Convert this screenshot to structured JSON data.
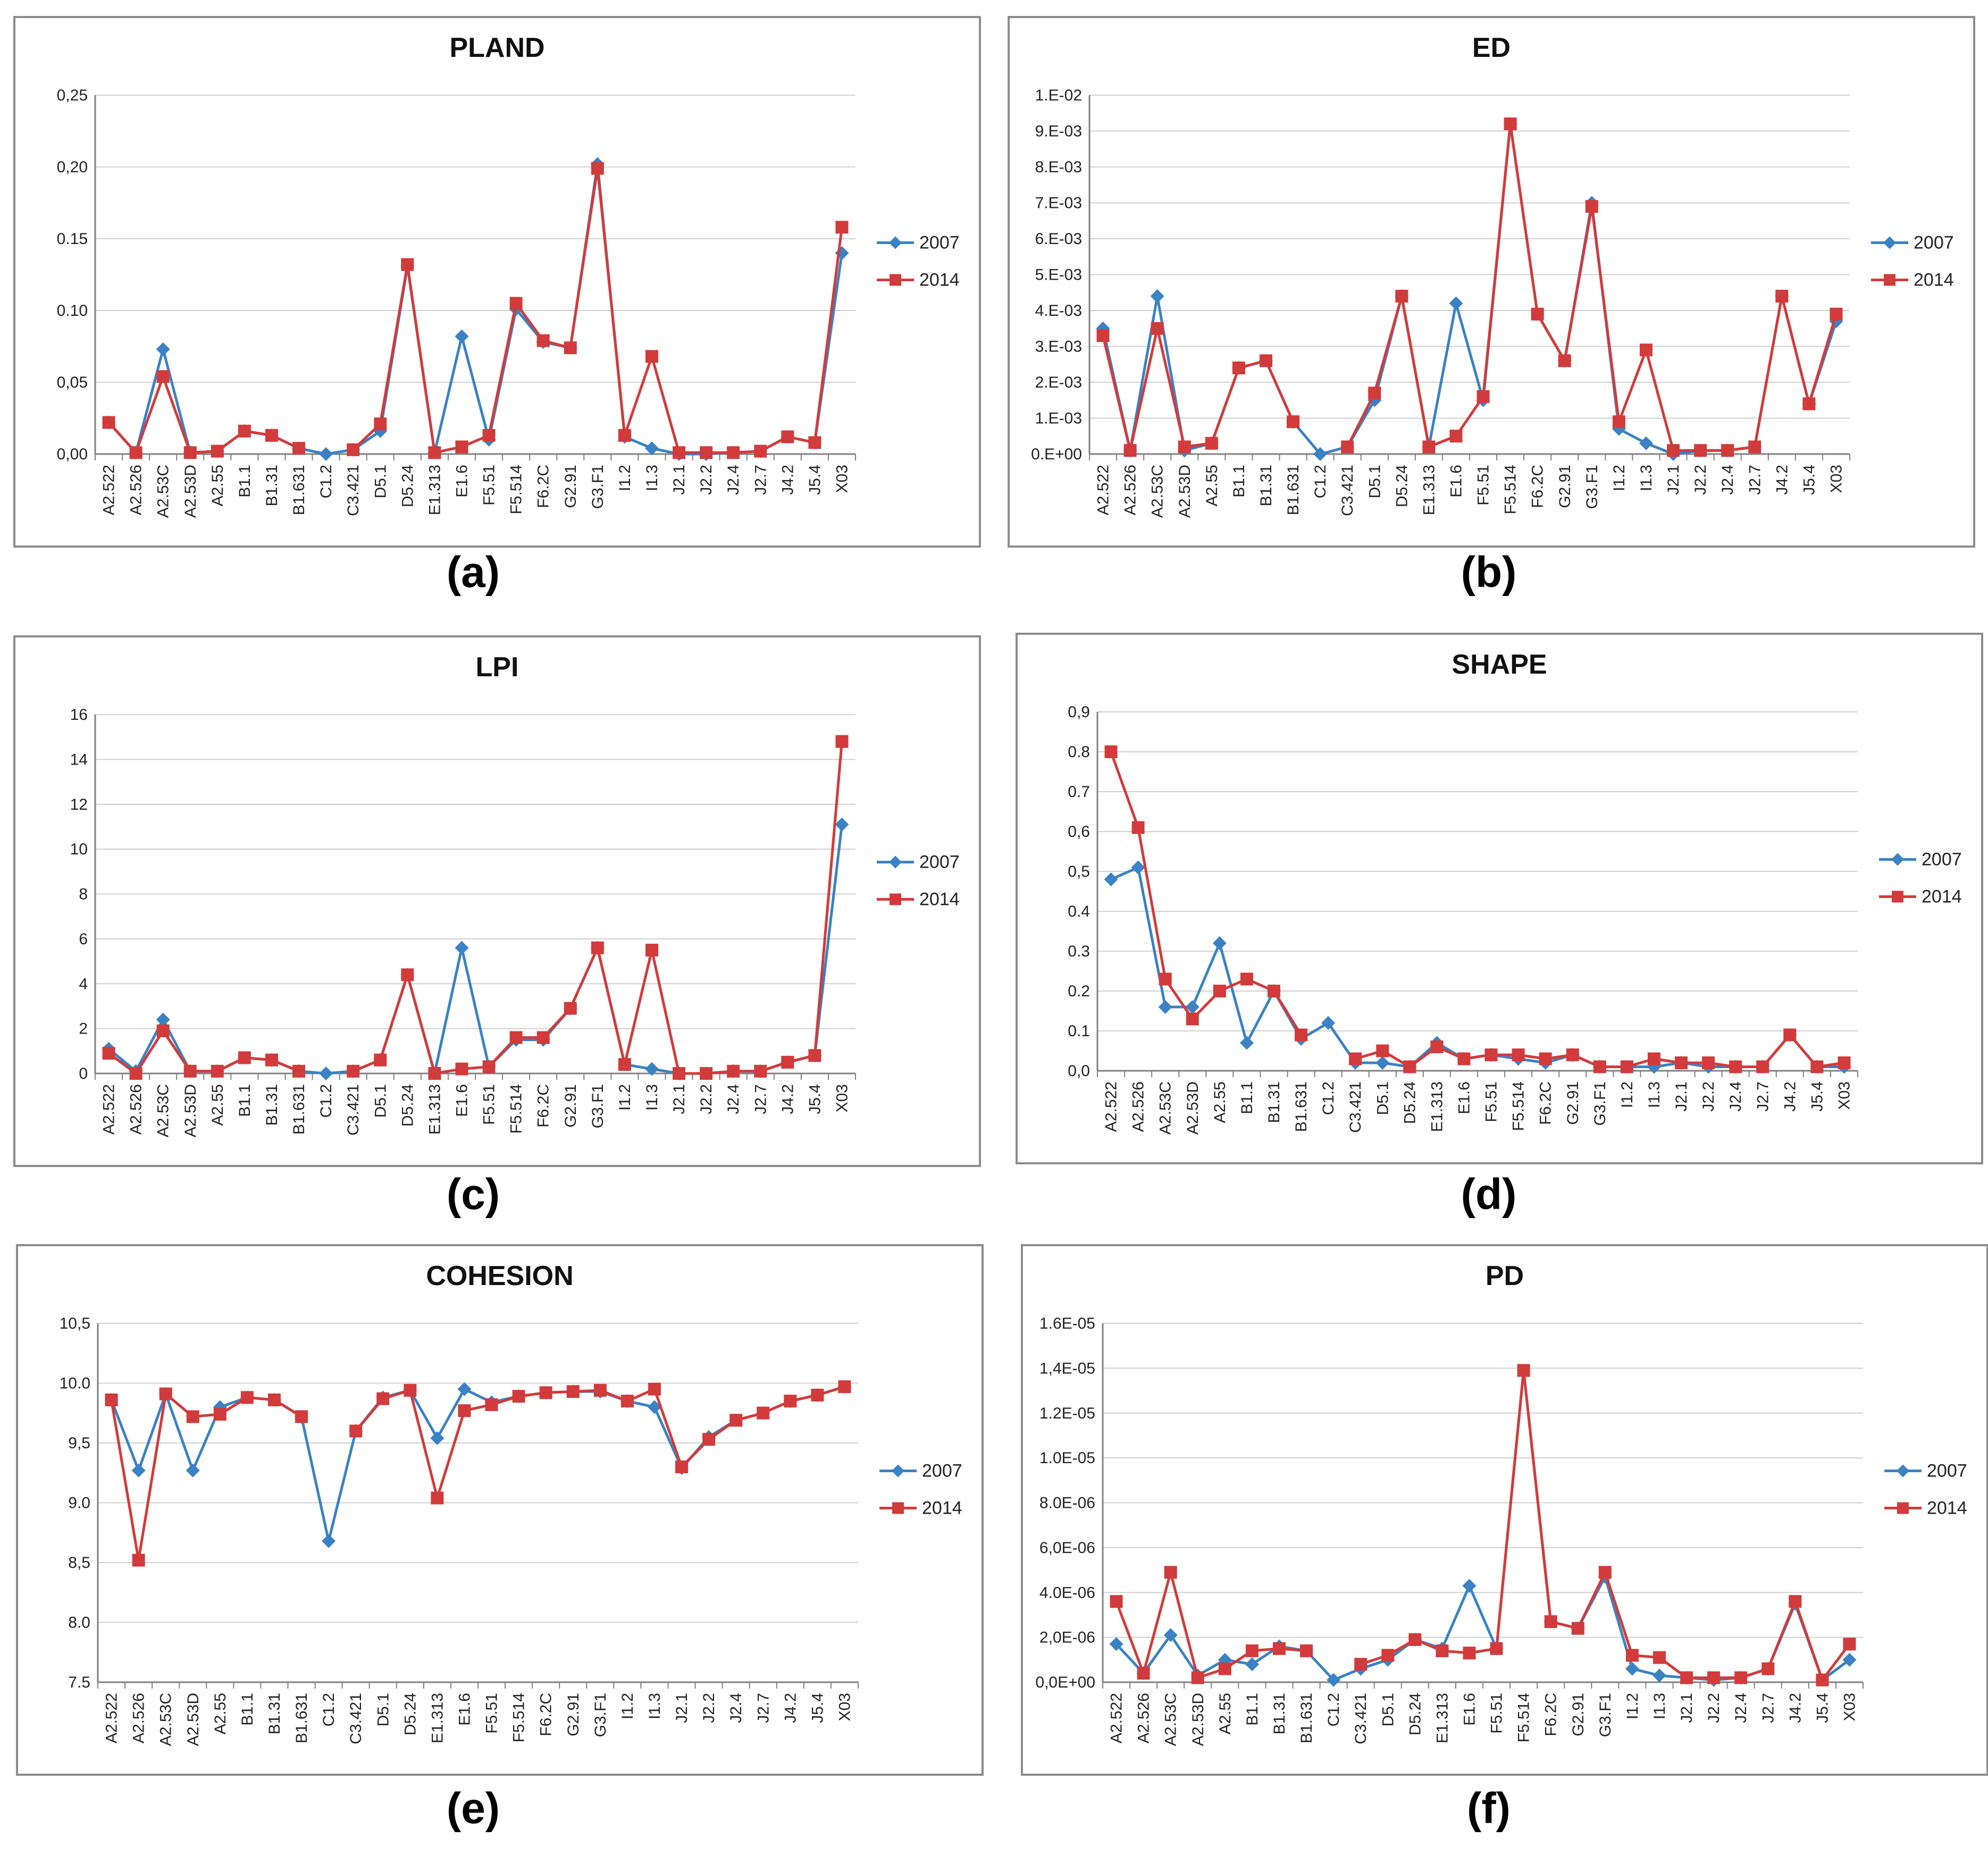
{
  "colors": {
    "y2007": "#3a82c4",
    "y2014": "#d23b3b",
    "grid": "#d0d0d0",
    "axis": "#808080"
  },
  "chart_data": [
    {
      "type": "line",
      "title": "PLAND",
      "caption": "(a)",
      "categories": [
        "A2.522",
        "A2.526",
        "A2.53C",
        "A2.53D",
        "A2.55",
        "B1.1",
        "B1.31",
        "B1.631",
        "C1.2",
        "C3.421",
        "D5.1",
        "D5.24",
        "E1.313",
        "E1.6",
        "F5.51",
        "F5.514",
        "F6.2C",
        "G2.91",
        "G3.F1",
        "I1.2",
        "I1.3",
        "J2.1",
        "J2.2",
        "J2.4",
        "J2.7",
        "J4.2",
        "J5.4",
        "X03"
      ],
      "yticks": [
        "0,00",
        "0,05",
        "0.10",
        "0.15",
        "0,20",
        "0,25"
      ],
      "ylim": [
        0,
        0.25
      ],
      "series": [
        {
          "name": "2007",
          "values": [
            0.022,
            0.001,
            0.073,
            0.001,
            0.002,
            0.016,
            0.013,
            0.004,
            0.0,
            0.003,
            0.016,
            0.131,
            0.001,
            0.082,
            0.01,
            0.101,
            0.078,
            0.074,
            0.202,
            0.012,
            0.004,
            0.0,
            0.0,
            0.001,
            0.002,
            0.012,
            0.008,
            0.14
          ]
        },
        {
          "name": "2014",
          "values": [
            0.022,
            0.001,
            0.054,
            0.001,
            0.002,
            0.016,
            0.013,
            0.004,
            null,
            0.003,
            0.021,
            0.132,
            0.001,
            0.005,
            0.013,
            0.105,
            0.079,
            0.074,
            0.199,
            0.013,
            0.068,
            0.001,
            0.001,
            0.001,
            0.002,
            0.012,
            0.008,
            0.158
          ]
        }
      ]
    },
    {
      "type": "line",
      "title": "ED",
      "caption": "(b)",
      "categories": [
        "A2.522",
        "A2.526",
        "A2.53C",
        "A2.53D",
        "A2.55",
        "B1.1",
        "B1.31",
        "B1.631",
        "C1.2",
        "C3.421",
        "D5.1",
        "D5.24",
        "E1.313",
        "E1.6",
        "F5.51",
        "F5.514",
        "F6.2C",
        "G2.91",
        "G3.F1",
        "I1.2",
        "I1.3",
        "J2.1",
        "J2.2",
        "J2.4",
        "J2.7",
        "J4.2",
        "J5.4",
        "X03"
      ],
      "yticks": [
        "0.E+00",
        "1.E-03",
        "2.E-03",
        "3.E-03",
        "4.E-03",
        "5.E-03",
        "6.E-03",
        "7.E-03",
        "8.E-03",
        "9.E-03",
        "1.E-02"
      ],
      "ylim": [
        0,
        0.01
      ],
      "series": [
        {
          "name": "2007",
          "values": [
            0.0035,
            0.0001,
            0.0044,
            0.0001,
            0.0003,
            0.0024,
            0.0026,
            0.0009,
            0.0,
            0.0002,
            0.0015,
            0.0044,
            0.0002,
            0.0042,
            0.0015,
            0.0092,
            0.0039,
            0.0026,
            0.007,
            0.0007,
            0.0003,
            0.0,
            0.0001,
            0.0001,
            0.0002,
            0.0044,
            0.0014,
            0.0037
          ]
        },
        {
          "name": "2014",
          "values": [
            0.0033,
            0.0001,
            0.0035,
            0.0002,
            0.0003,
            0.0024,
            0.0026,
            0.0009,
            null,
            0.0002,
            0.0017,
            0.0044,
            0.0002,
            0.0005,
            0.0016,
            0.0092,
            0.0039,
            0.0026,
            0.0069,
            0.0009,
            0.0029,
            0.0001,
            0.0001,
            0.0001,
            0.0002,
            0.0044,
            0.0014,
            0.0039
          ]
        }
      ]
    },
    {
      "type": "line",
      "title": "LPI",
      "caption": "(c)",
      "categories": [
        "A2.522",
        "A2.526",
        "A2.53C",
        "A2.53D",
        "A2.55",
        "B1.1",
        "B1.31",
        "B1.631",
        "C1.2",
        "C3.421",
        "D5.1",
        "D5.24",
        "E1.313",
        "E1.6",
        "F5.51",
        "F5.514",
        "F6.2C",
        "G2.91",
        "G3.F1",
        "I1.2",
        "I1.3",
        "J2.1",
        "J2.2",
        "J2.4",
        "J2.7",
        "J4.2",
        "J5.4",
        "X03"
      ],
      "yticks": [
        "0",
        "2",
        "4",
        "6",
        "8",
        "10",
        "12",
        "14",
        "16"
      ],
      "ylim": [
        0,
        16
      ],
      "series": [
        {
          "name": "2007",
          "values": [
            1.1,
            0.1,
            2.4,
            0.1,
            0.1,
            0.7,
            0.6,
            0.1,
            0.0,
            0.1,
            0.6,
            4.4,
            0.0,
            5.6,
            0.3,
            1.5,
            1.5,
            2.9,
            5.6,
            0.4,
            0.2,
            0.0,
            0.0,
            0.1,
            0.1,
            0.5,
            0.8,
            11.1
          ]
        },
        {
          "name": "2014",
          "values": [
            0.9,
            0.0,
            1.9,
            0.1,
            0.1,
            0.7,
            0.6,
            0.1,
            null,
            0.1,
            0.6,
            4.4,
            0.0,
            0.2,
            0.3,
            1.6,
            1.6,
            2.9,
            5.6,
            0.4,
            5.5,
            0.0,
            0.0,
            0.1,
            0.1,
            0.5,
            0.8,
            14.8
          ]
        }
      ]
    },
    {
      "type": "line",
      "title": "SHAPE",
      "caption": "(d)",
      "categories": [
        "A2.522",
        "A2.526",
        "A2.53C",
        "A2.53D",
        "A2.55",
        "B1.1",
        "B1.31",
        "B1.631",
        "C1.2",
        "C3.421",
        "D5.1",
        "D5.24",
        "E1.313",
        "E1.6",
        "F5.51",
        "F5.514",
        "F6.2C",
        "G2.91",
        "G3.F1",
        "I1.2",
        "I1.3",
        "J2.1",
        "J2.2",
        "J2.4",
        "J2.7",
        "J4.2",
        "J5.4",
        "X03"
      ],
      "yticks": [
        "0,0",
        "0.1",
        "0.2",
        "0.3",
        "0.4",
        "0,5",
        "0,6",
        "0.7",
        "0.8",
        "0,9"
      ],
      "ylim": [
        0,
        0.9
      ],
      "series": [
        {
          "name": "2007",
          "values": [
            0.48,
            0.51,
            0.16,
            0.16,
            0.32,
            0.07,
            0.2,
            0.08,
            0.12,
            0.02,
            0.02,
            0.01,
            0.07,
            0.03,
            0.04,
            0.03,
            0.02,
            0.04,
            0.01,
            0.01,
            0.01,
            0.02,
            0.01,
            0.01,
            0.01,
            0.09,
            0.01,
            0.01
          ]
        },
        {
          "name": "2014",
          "values": [
            0.8,
            0.61,
            0.23,
            0.13,
            0.2,
            0.23,
            0.2,
            0.09,
            null,
            0.03,
            0.05,
            0.01,
            0.06,
            0.03,
            0.04,
            0.04,
            0.03,
            0.04,
            0.01,
            0.01,
            0.03,
            0.02,
            0.02,
            0.01,
            0.01,
            0.09,
            0.01,
            0.02
          ]
        }
      ]
    },
    {
      "type": "line",
      "title": "COHESION",
      "caption": "(e)",
      "categories": [
        "A2.522",
        "A2.526",
        "A2.53C",
        "A2.53D",
        "A2.55",
        "B1.1",
        "B1.31",
        "B1.631",
        "C1.2",
        "C3.421",
        "D5.1",
        "D5.24",
        "E1.313",
        "E1.6",
        "F5.51",
        "F5.514",
        "F6.2C",
        "G2.91",
        "G3.F1",
        "I1.2",
        "I1.3",
        "J2.1",
        "J2.2",
        "J2.4",
        "J2.7",
        "J4.2",
        "J5.4",
        "X03"
      ],
      "yticks": [
        "7.5",
        "8.0",
        "8,5",
        "9.0",
        "9,5",
        "10.0",
        "10,5"
      ],
      "ylim": [
        7.5,
        10.5
      ],
      "series": [
        {
          "name": "2007",
          "values": [
            9.86,
            9.27,
            9.91,
            9.27,
            9.8,
            9.88,
            9.86,
            9.72,
            8.68,
            9.6,
            9.88,
            9.94,
            9.54,
            9.95,
            9.84,
            9.89,
            9.92,
            9.93,
            9.93,
            9.85,
            9.8,
            9.29,
            9.55,
            9.69,
            9.75,
            9.85,
            9.9,
            9.97
          ]
        },
        {
          "name": "2014",
          "values": [
            9.86,
            8.52,
            9.91,
            9.72,
            9.74,
            9.88,
            9.86,
            9.72,
            null,
            9.6,
            9.87,
            9.94,
            9.04,
            9.77,
            9.82,
            9.89,
            9.92,
            9.93,
            9.94,
            9.85,
            9.95,
            9.3,
            9.53,
            9.69,
            9.75,
            9.85,
            9.9,
            9.97
          ]
        }
      ]
    },
    {
      "type": "line",
      "title": "PD",
      "caption": "(f)",
      "categories": [
        "A2.522",
        "A2.526",
        "A2.53C",
        "A2.53D",
        "A2.55",
        "B1.1",
        "B1.31",
        "B1.631",
        "C1.2",
        "C3.421",
        "D5.1",
        "D5.24",
        "E1.313",
        "E1.6",
        "F5.51",
        "F5.514",
        "F6.2C",
        "G2.91",
        "G3.F1",
        "I1.2",
        "I1.3",
        "J2.1",
        "J2.2",
        "J2.4",
        "J2.7",
        "J4.2",
        "J5.4",
        "X03"
      ],
      "yticks": [
        "0,0E+00",
        "2,0E-06",
        "4.0E-06",
        "6,0E-06",
        "8.0E-06",
        "1.0E-05",
        "1.2E-05",
        "1,4E-05",
        "1.6E-05"
      ],
      "ylim": [
        0,
        1.6e-05
      ],
      "series": [
        {
          "name": "2007",
          "values": [
            1.7e-06,
            4e-07,
            2.1e-06,
            3e-07,
            1e-06,
            8e-07,
            1.6e-06,
            1.4e-06,
            1e-07,
            6e-07,
            1e-06,
            1.9e-06,
            1.5e-06,
            4.3e-06,
            1.5e-06,
            1.39e-05,
            2.7e-06,
            2.4e-06,
            4.7e-06,
            6e-07,
            3e-07,
            2e-07,
            1e-07,
            2e-07,
            6e-07,
            3.5e-06,
            1e-07,
            1e-06
          ]
        },
        {
          "name": "2014",
          "values": [
            3.6e-06,
            4e-07,
            4.9e-06,
            2e-07,
            6e-07,
            1.4e-06,
            1.5e-06,
            1.4e-06,
            null,
            8e-07,
            1.2e-06,
            1.9e-06,
            1.4e-06,
            1.3e-06,
            1.5e-06,
            1.39e-05,
            2.7e-06,
            2.4e-06,
            4.9e-06,
            1.2e-06,
            1.1e-06,
            2e-07,
            2e-07,
            2e-07,
            6e-07,
            3.6e-06,
            1e-07,
            1.7e-06
          ]
        }
      ]
    }
  ]
}
